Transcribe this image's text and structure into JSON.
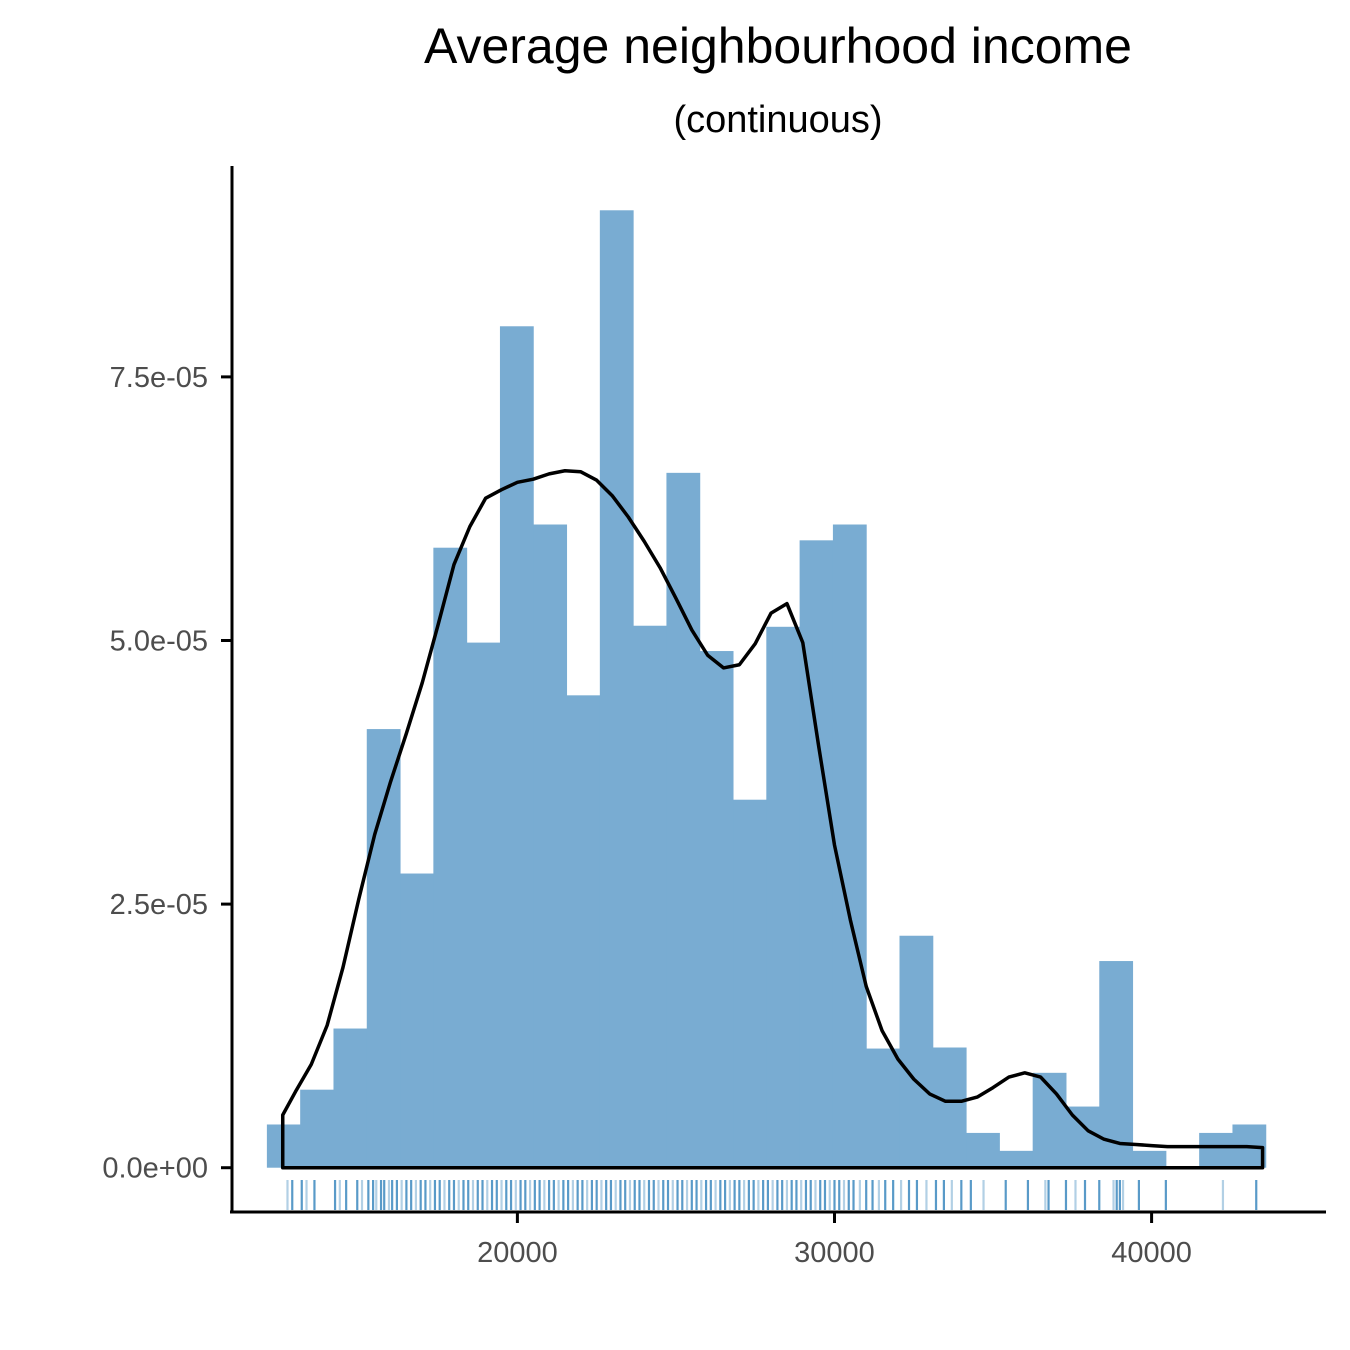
{
  "chart_data": {
    "type": "bar",
    "title": "Average neighbourhood income",
    "subtitle": "(continuous)",
    "xlabel": "",
    "ylabel": "",
    "xlim": [
      11000,
      45500
    ],
    "ylim": [
      -4.2e-06,
      9.5e-05
    ],
    "x_ticks": [
      20000,
      30000,
      40000
    ],
    "x_tick_labels": [
      "20000",
      "30000",
      "40000"
    ],
    "y_ticks": [
      0,
      2.5e-05,
      5e-05,
      7.5e-05
    ],
    "y_tick_labels": [
      "0.0e+00",
      "2.5e-05",
      "5.0e-05",
      "7.5e-05"
    ],
    "grid": false,
    "legend": "none",
    "bar_color": "#79acd2",
    "rug_color": "#2278b5",
    "line_color": "#000000",
    "histogram": {
      "bin_width": 1050,
      "bin_starts": [
        12100,
        13150,
        14200,
        15250,
        16300,
        17350,
        18400,
        19450,
        20500,
        21550,
        22600,
        23650,
        24700,
        25750,
        26800,
        27850,
        28900,
        29950,
        31000,
        32050,
        33100,
        34150,
        35200,
        36250,
        37300,
        38350,
        39400,
        40450,
        41500,
        42550,
        43600
      ],
      "density": [
        4.1e-06,
        7.4e-06,
        1.32e-05,
        4.16e-05,
        2.79e-05,
        5.88e-05,
        4.98e-05,
        7.98e-05,
        6.1e-05,
        4.48e-05,
        9.08e-05,
        5.14e-05,
        6.59e-05,
        4.9e-05,
        3.49e-05,
        5.13e-05,
        5.95e-05,
        6.1e-05,
        1.13e-05,
        2.2e-05,
        1.14e-05,
        3.3e-06,
        1.6e-06,
        9e-06,
        5.8e-06,
        1.96e-05,
        1.6e-06,
        0.0,
        3.3e-06,
        4.1e-06,
        0.0
      ]
    },
    "density_curve": {
      "x": [
        12600,
        13000,
        13500,
        14000,
        14500,
        15000,
        15500,
        16000,
        16500,
        17000,
        17500,
        18000,
        18500,
        19000,
        19500,
        20000,
        20500,
        21000,
        21500,
        22000,
        22500,
        23000,
        23500,
        24000,
        24500,
        25000,
        25500,
        26000,
        26500,
        27000,
        27500,
        28000,
        28500,
        29000,
        29500,
        30000,
        30500,
        31000,
        31500,
        32000,
        32500,
        33000,
        33500,
        34000,
        34500,
        35000,
        35500,
        36000,
        36500,
        37000,
        37500,
        38000,
        38500,
        39000,
        39500,
        40000,
        40500,
        41000,
        41500,
        42000,
        42500,
        43000,
        43500
      ],
      "y": [
        5e-06,
        7.2e-06,
        9.8e-06,
        1.35e-05,
        1.9e-05,
        2.55e-05,
        3.16e-05,
        3.66e-05,
        4.12e-05,
        4.6e-05,
        5.15e-05,
        5.72e-05,
        6.08e-05,
        6.35e-05,
        6.43e-05,
        6.5e-05,
        6.53e-05,
        6.58e-05,
        6.61e-05,
        6.6e-05,
        6.52e-05,
        6.37e-05,
        6.17e-05,
        5.94e-05,
        5.69e-05,
        5.4e-05,
        5.1e-05,
        4.86e-05,
        4.74e-05,
        4.77e-05,
        4.97e-05,
        5.26e-05,
        5.35e-05,
        4.98e-05,
        4e-05,
        3.06e-05,
        2.35e-05,
        1.72e-05,
        1.3e-05,
        1.03e-05,
        8.4e-06,
        7e-06,
        6.3e-06,
        6.3e-06,
        6.7e-06,
        7.6e-06,
        8.6e-06,
        9e-06,
        8.6e-06,
        7e-06,
        5e-06,
        3.5e-06,
        2.7e-06,
        2.3e-06,
        2.2e-06,
        2.1e-06,
        2e-06,
        2e-06,
        2e-06,
        2e-06,
        2e-06,
        2e-06,
        1.9e-06
      ]
    },
    "rug_x": [
      12750,
      12900,
      13200,
      13350,
      13600,
      14250,
      14400,
      14600,
      14950,
      15100,
      15300,
      15450,
      15550,
      15700,
      15800,
      15950,
      16050,
      16200,
      16350,
      16500,
      16650,
      16800,
      16950,
      17100,
      17250,
      17400,
      17550,
      17700,
      17850,
      18000,
      18150,
      18300,
      18450,
      18600,
      18750,
      18900,
      19050,
      19200,
      19350,
      19500,
      19650,
      19800,
      19950,
      20100,
      20250,
      20400,
      20550,
      20700,
      20850,
      21000,
      21150,
      21300,
      21450,
      21600,
      21750,
      21900,
      22050,
      22200,
      22350,
      22500,
      22650,
      22800,
      22950,
      23100,
      23250,
      23400,
      23550,
      23700,
      23850,
      24000,
      24150,
      24300,
      24450,
      24600,
      24750,
      24900,
      25050,
      25200,
      25350,
      25500,
      25650,
      25800,
      25950,
      26100,
      26250,
      26400,
      26550,
      26700,
      26850,
      27000,
      27150,
      27300,
      27450,
      27600,
      27750,
      27900,
      28050,
      28200,
      28350,
      28500,
      28650,
      28800,
      28950,
      29100,
      29250,
      29400,
      29550,
      29700,
      29850,
      30000,
      30150,
      30300,
      30450,
      30600,
      30800,
      31000,
      31200,
      31400,
      31600,
      31850,
      32100,
      32350,
      32600,
      32900,
      33200,
      33450,
      33700,
      34000,
      34300,
      34700,
      35400,
      36100,
      36650,
      36750,
      37300,
      37600,
      37900,
      38350,
      38800,
      38900,
      39000,
      39100,
      39600,
      40450,
      42250,
      43300
    ]
  }
}
